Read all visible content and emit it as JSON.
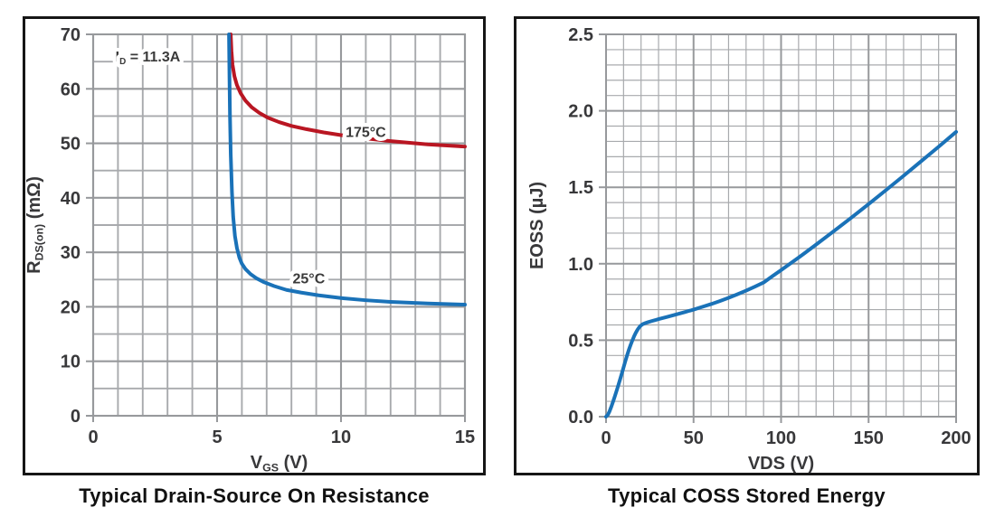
{
  "chart_data": [
    {
      "type": "line",
      "caption": "Typical Drain-Source On Resistance",
      "xlabel": "V_{GS} (V)",
      "ylabel": "R_{DS(on)} (mΩ)",
      "xlim": [
        0,
        15
      ],
      "ylim": [
        0,
        70
      ],
      "x_major_ticks": [
        0,
        5,
        10,
        15
      ],
      "x_tick_labels": [
        "0",
        "5",
        "10",
        "15"
      ],
      "x_minor_step": 1,
      "y_major_ticks": [
        0,
        10,
        20,
        30,
        40,
        50,
        60,
        70
      ],
      "y_tick_labels": [
        "0",
        "10",
        "20",
        "30",
        "40",
        "50",
        "60",
        "70"
      ],
      "y_minor_step": 5,
      "grid": true,
      "legend": "inline-labels",
      "annotations": [
        {
          "text": "I_{D} = 11.3A",
          "x": 0.9,
          "y": 65.0,
          "anchor": "start"
        }
      ],
      "series": [
        {
          "name": "175°C",
          "color": "#b91622",
          "label": {
            "text": "175°C",
            "x": 11.0,
            "y": 51.2,
            "anchor": "middle"
          },
          "points": [
            [
              5.55,
              70
            ],
            [
              5.58,
              67
            ],
            [
              5.62,
              64.5
            ],
            [
              5.7,
              62.3
            ],
            [
              5.8,
              60.7
            ],
            [
              5.95,
              59.2
            ],
            [
              6.15,
              57.8
            ],
            [
              6.4,
              56.6
            ],
            [
              6.7,
              55.6
            ],
            [
              7.05,
              54.7
            ],
            [
              7.5,
              53.9
            ],
            [
              8.0,
              53.2
            ],
            [
              8.6,
              52.6
            ],
            [
              9.3,
              52.0
            ],
            [
              10.0,
              51.5
            ],
            [
              11.0,
              50.9
            ],
            [
              12.0,
              50.4
            ],
            [
              13.5,
              49.8
            ],
            [
              15.0,
              49.4
            ]
          ]
        },
        {
          "name": "25°C",
          "color": "#1a72b8",
          "label": {
            "text": "25°C",
            "x": 8.7,
            "y": 24.3,
            "anchor": "middle"
          },
          "points": [
            [
              5.48,
              70
            ],
            [
              5.5,
              62
            ],
            [
              5.52,
              55
            ],
            [
              5.55,
              48
            ],
            [
              5.6,
              41
            ],
            [
              5.65,
              36.5
            ],
            [
              5.72,
              33
            ],
            [
              5.8,
              30.8
            ],
            [
              5.9,
              29
            ],
            [
              6.0,
              27.9
            ],
            [
              6.15,
              26.9
            ],
            [
              6.35,
              26.0
            ],
            [
              6.6,
              25.2
            ],
            [
              6.9,
              24.5
            ],
            [
              7.3,
              23.8
            ],
            [
              7.8,
              23.1
            ],
            [
              8.4,
              22.6
            ],
            [
              9.1,
              22.1
            ],
            [
              10.0,
              21.6
            ],
            [
              11.0,
              21.2
            ],
            [
              12.0,
              20.9
            ],
            [
              13.5,
              20.6
            ],
            [
              15.0,
              20.4
            ]
          ]
        }
      ]
    },
    {
      "type": "line",
      "caption": "Typical COSS Stored Energy",
      "xlabel": "VDS (V)",
      "ylabel": "EOSS (µJ)",
      "xlim": [
        0,
        200
      ],
      "ylim": [
        0,
        2.5
      ],
      "x_major_ticks": [
        0,
        50,
        100,
        150,
        200
      ],
      "x_tick_labels": [
        "0",
        "50",
        "100",
        "150",
        "200"
      ],
      "x_minor_step": 10,
      "y_major_ticks": [
        0,
        0.5,
        1.0,
        1.5,
        2.0,
        2.5
      ],
      "y_tick_labels": [
        "0.0",
        "0.5",
        "1.0",
        "1.5",
        "2.0",
        "2.5"
      ],
      "y_minor_step": 0.1,
      "grid": true,
      "legend": "none",
      "annotations": [],
      "series": [
        {
          "name": "EOSS",
          "color": "#1a72b8",
          "points": [
            [
              0,
              0
            ],
            [
              1,
              0.012
            ],
            [
              2,
              0.035
            ],
            [
              3,
              0.065
            ],
            [
              4,
              0.098
            ],
            [
              5,
              0.132
            ],
            [
              6,
              0.168
            ],
            [
              7,
              0.205
            ],
            [
              8,
              0.243
            ],
            [
              9,
              0.282
            ],
            [
              10,
              0.322
            ],
            [
              11,
              0.362
            ],
            [
              12,
              0.4
            ],
            [
              13,
              0.436
            ],
            [
              14,
              0.468
            ],
            [
              15,
              0.498
            ],
            [
              16,
              0.525
            ],
            [
              17,
              0.549
            ],
            [
              18,
              0.569
            ],
            [
              19,
              0.585
            ],
            [
              20,
              0.597
            ],
            [
              21,
              0.605
            ],
            [
              22,
              0.61
            ],
            [
              24,
              0.618
            ],
            [
              26,
              0.625
            ],
            [
              28,
              0.631
            ],
            [
              30,
              0.638
            ],
            [
              35,
              0.653
            ],
            [
              40,
              0.668
            ],
            [
              45,
              0.684
            ],
            [
              50,
              0.7
            ],
            [
              55,
              0.718
            ],
            [
              60,
              0.736
            ],
            [
              65,
              0.756
            ],
            [
              70,
              0.777
            ],
            [
              75,
              0.8
            ],
            [
              80,
              0.824
            ],
            [
              85,
              0.85
            ],
            [
              90,
              0.877
            ],
            [
              95,
              0.918
            ],
            [
              100,
              0.958
            ],
            [
              110,
              1.04
            ],
            [
              120,
              1.125
            ],
            [
              130,
              1.212
            ],
            [
              140,
              1.3
            ],
            [
              150,
              1.39
            ],
            [
              160,
              1.482
            ],
            [
              170,
              1.575
            ],
            [
              180,
              1.67
            ],
            [
              190,
              1.765
            ],
            [
              200,
              1.862
            ]
          ]
        }
      ]
    }
  ],
  "colors": {
    "grid_minor": "#a8aaad",
    "grid_major": "#97999c",
    "frame": "#97999c",
    "tick_text": "#38383a",
    "annotation_text": "#3a3a3a",
    "caption_text": "#111111",
    "panel_border": "#161616",
    "background": "#ffffff"
  }
}
